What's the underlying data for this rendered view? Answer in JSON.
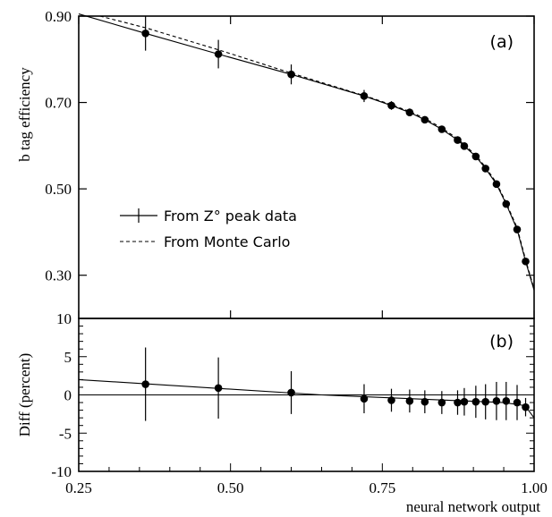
{
  "chart_data": [
    {
      "type": "line",
      "panel_label": "(a)",
      "xlabel": "neural network output",
      "ylabel": "b tag efficiency",
      "xlim": [
        0.25,
        1.0
      ],
      "ylim": [
        0.2,
        0.9
      ],
      "yticks": [
        {
          "v": 0.3,
          "label": "0.30"
        },
        {
          "v": 0.5,
          "label": "0.50"
        },
        {
          "v": 0.7,
          "label": "0.70"
        },
        {
          "v": 0.9,
          "label": "0.90"
        }
      ],
      "legend": [
        {
          "label": "From Z° peak data",
          "style": "solid-errorbar"
        },
        {
          "label": "From Monte Carlo",
          "style": "dashed"
        }
      ],
      "series": [
        {
          "name": "From Z° peak data",
          "style": "points-with-errors",
          "points": [
            {
              "x": 0.36,
              "y": 0.86,
              "err": 0.04
            },
            {
              "x": 0.48,
              "y": 0.812,
              "err": 0.033
            },
            {
              "x": 0.6,
              "y": 0.765,
              "err": 0.023
            },
            {
              "x": 0.72,
              "y": 0.715,
              "err": 0.014
            },
            {
              "x": 0.765,
              "y": 0.693,
              "err": 0.01
            },
            {
              "x": 0.795,
              "y": 0.677,
              "err": 0.009
            },
            {
              "x": 0.82,
              "y": 0.66,
              "err": 0.008
            },
            {
              "x": 0.848,
              "y": 0.638,
              "err": 0.008
            },
            {
              "x": 0.874,
              "y": 0.613,
              "err": 0.008
            },
            {
              "x": 0.885,
              "y": 0.599,
              "err": 0.008
            },
            {
              "x": 0.904,
              "y": 0.575,
              "err": 0.008
            },
            {
              "x": 0.92,
              "y": 0.547,
              "err": 0.008
            },
            {
              "x": 0.938,
              "y": 0.511,
              "err": 0.008
            },
            {
              "x": 0.954,
              "y": 0.465,
              "err": 0.008
            },
            {
              "x": 0.972,
              "y": 0.406,
              "err": 0.008
            },
            {
              "x": 0.986,
              "y": 0.332,
              "err": 0.006
            }
          ],
          "curve": [
            [
              0.25,
              0.905
            ],
            [
              0.36,
              0.86
            ],
            [
              0.48,
              0.812
            ],
            [
              0.6,
              0.765
            ],
            [
              0.72,
              0.715
            ],
            [
              0.765,
              0.693
            ],
            [
              0.795,
              0.677
            ],
            [
              0.82,
              0.66
            ],
            [
              0.848,
              0.638
            ],
            [
              0.874,
              0.613
            ],
            [
              0.885,
              0.599
            ],
            [
              0.904,
              0.575
            ],
            [
              0.92,
              0.547
            ],
            [
              0.938,
              0.511
            ],
            [
              0.954,
              0.465
            ],
            [
              0.972,
              0.406
            ],
            [
              0.986,
              0.332
            ],
            [
              1.0,
              0.265
            ]
          ]
        },
        {
          "name": "From Monte Carlo",
          "style": "dashed",
          "curve": [
            [
              0.285,
              0.9
            ],
            [
              0.36,
              0.873
            ],
            [
              0.48,
              0.822
            ],
            [
              0.6,
              0.768
            ],
            [
              0.72,
              0.716
            ],
            [
              0.765,
              0.695
            ],
            [
              0.795,
              0.679
            ],
            [
              0.82,
              0.663
            ],
            [
              0.848,
              0.641
            ],
            [
              0.874,
              0.616
            ],
            [
              0.885,
              0.602
            ],
            [
              0.904,
              0.578
            ],
            [
              0.92,
              0.55
            ],
            [
              0.938,
              0.514
            ],
            [
              0.954,
              0.468
            ],
            [
              0.972,
              0.41
            ],
            [
              0.986,
              0.336
            ],
            [
              1.0,
              0.268
            ]
          ]
        }
      ]
    },
    {
      "type": "line",
      "panel_label": "(b)",
      "xlabel": "neural network output",
      "ylabel": "Diff (percent)",
      "xlim": [
        0.25,
        1.0
      ],
      "ylim": [
        -10,
        10
      ],
      "xticks": [
        {
          "v": 0.25,
          "label": "0.25"
        },
        {
          "v": 0.5,
          "label": "0.50"
        },
        {
          "v": 0.75,
          "label": "0.75"
        },
        {
          "v": 1.0,
          "label": "1.00"
        }
      ],
      "yticks": [
        {
          "v": -10,
          "label": "-10"
        },
        {
          "v": -5,
          "label": "-5"
        },
        {
          "v": 0,
          "label": "0"
        },
        {
          "v": 5,
          "label": "5"
        },
        {
          "v": 10,
          "label": "10"
        }
      ],
      "reference_line": 0,
      "series": [
        {
          "style": "points-with-errors",
          "points": [
            {
              "x": 0.36,
              "y": 1.4,
              "err": 4.8
            },
            {
              "x": 0.48,
              "y": 0.9,
              "err": 4.0
            },
            {
              "x": 0.6,
              "y": 0.3,
              "err": 2.8
            },
            {
              "x": 0.72,
              "y": -0.5,
              "err": 1.9
            },
            {
              "x": 0.765,
              "y": -0.7,
              "err": 1.5
            },
            {
              "x": 0.795,
              "y": -0.8,
              "err": 1.5
            },
            {
              "x": 0.82,
              "y": -0.9,
              "err": 1.5
            },
            {
              "x": 0.848,
              "y": -1.0,
              "err": 1.5
            },
            {
              "x": 0.874,
              "y": -1.0,
              "err": 1.6
            },
            {
              "x": 0.885,
              "y": -0.9,
              "err": 1.8
            },
            {
              "x": 0.904,
              "y": -0.9,
              "err": 2.1
            },
            {
              "x": 0.92,
              "y": -0.9,
              "err": 2.3
            },
            {
              "x": 0.938,
              "y": -0.8,
              "err": 2.5
            },
            {
              "x": 0.954,
              "y": -0.8,
              "err": 2.5
            },
            {
              "x": 0.972,
              "y": -1.0,
              "err": 2.3
            },
            {
              "x": 0.986,
              "y": -1.6,
              "err": 1.2
            }
          ],
          "curve": [
            [
              0.25,
              2.0
            ],
            [
              0.65,
              0.0
            ],
            [
              0.95,
              -1.0
            ],
            [
              0.985,
              -1.4
            ],
            [
              1.0,
              -3.0
            ]
          ]
        }
      ]
    }
  ]
}
